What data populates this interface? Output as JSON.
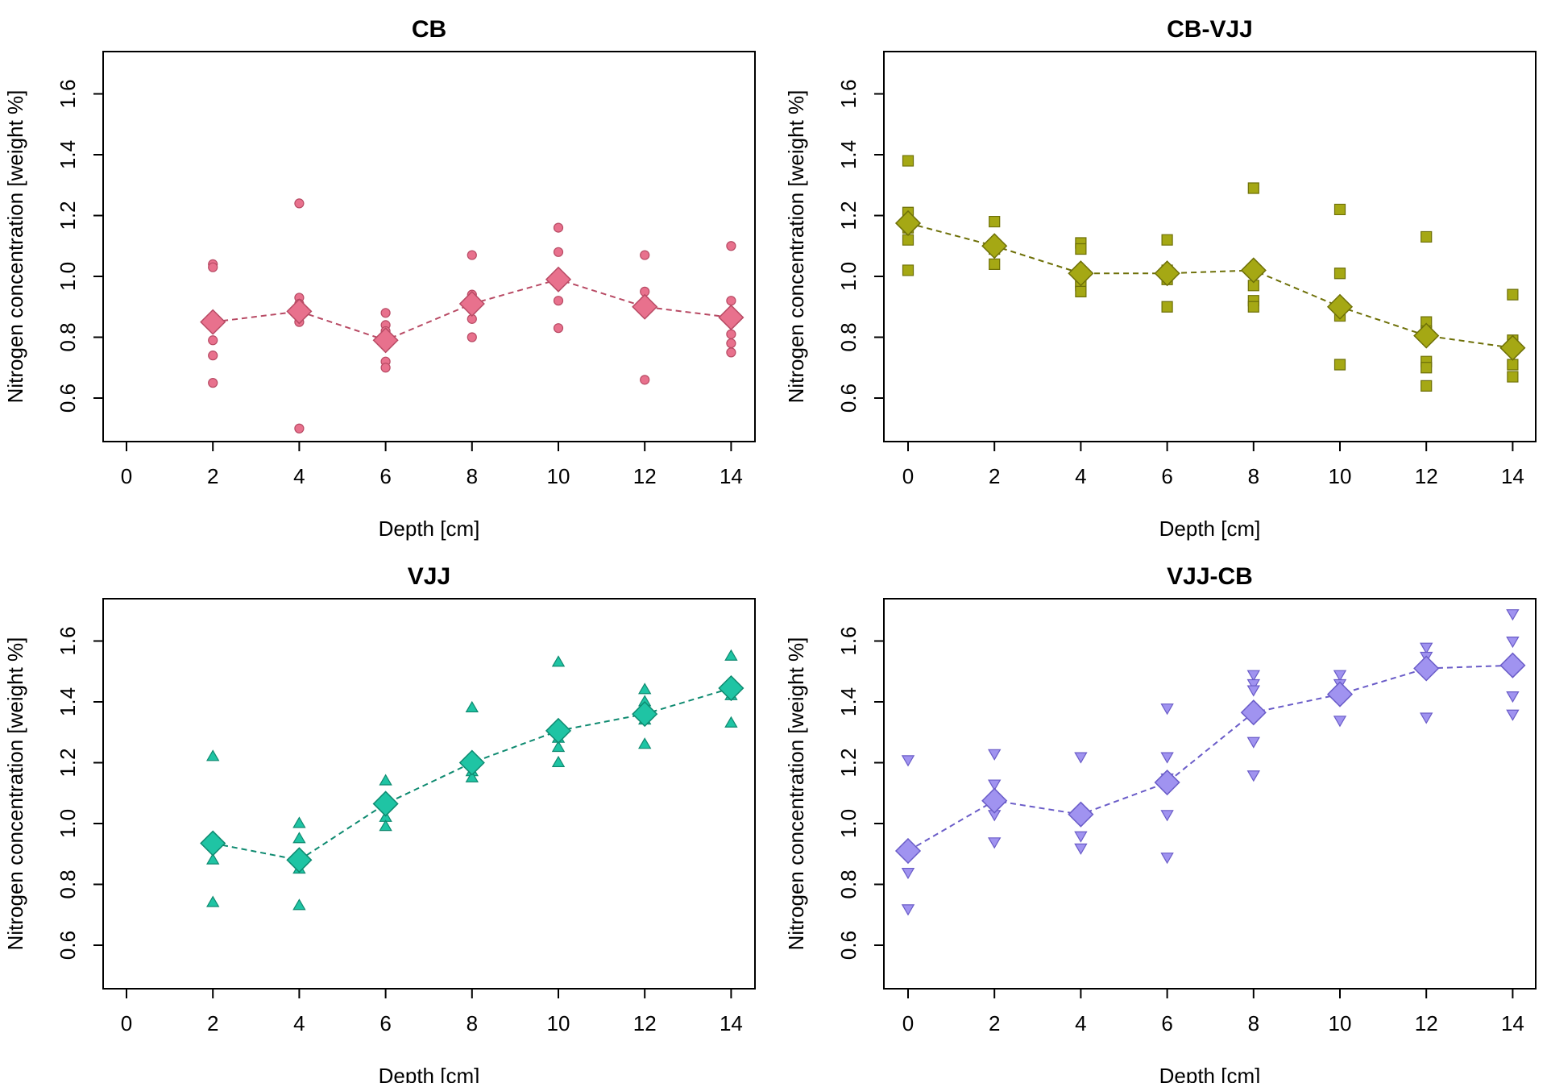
{
  "chart_data": [
    {
      "type": "scatter",
      "title": "CB",
      "xlabel": "Depth [cm]",
      "ylabel": "Nitrogen concentration [weight %]",
      "xlim": [
        0,
        14
      ],
      "ylim": [
        0.6,
        1.6
      ],
      "x_ticks": [
        "0",
        "2",
        "4",
        "6",
        "8",
        "10",
        "12",
        "14"
      ],
      "y_ticks": [
        "0.6",
        "0.8",
        "1.0",
        "1.2",
        "1.4",
        "1.6"
      ],
      "color": "#E8718D",
      "edge_color": "#B84A64",
      "marker": "circle",
      "points": [
        [
          2,
          1.04
        ],
        [
          2,
          1.03
        ],
        [
          2,
          0.79
        ],
        [
          2,
          0.74
        ],
        [
          2,
          0.65
        ],
        [
          4,
          1.24
        ],
        [
          4,
          0.93
        ],
        [
          4,
          0.91
        ],
        [
          4,
          0.88
        ],
        [
          4,
          0.85
        ],
        [
          4,
          0.5
        ],
        [
          6,
          0.88
        ],
        [
          6,
          0.84
        ],
        [
          6,
          0.82
        ],
        [
          6,
          0.72
        ],
        [
          6,
          0.7
        ],
        [
          8,
          1.07
        ],
        [
          8,
          0.94
        ],
        [
          8,
          0.89
        ],
        [
          8,
          0.86
        ],
        [
          8,
          0.8
        ],
        [
          10,
          1.16
        ],
        [
          10,
          1.08
        ],
        [
          10,
          0.99
        ],
        [
          10,
          0.92
        ],
        [
          10,
          0.83
        ],
        [
          12,
          1.07
        ],
        [
          12,
          0.95
        ],
        [
          12,
          0.92
        ],
        [
          12,
          0.89
        ],
        [
          12,
          0.66
        ],
        [
          14,
          1.1
        ],
        [
          14,
          0.92
        ],
        [
          14,
          0.81
        ],
        [
          14,
          0.78
        ],
        [
          14,
          0.75
        ]
      ],
      "means": [
        [
          2,
          0.85
        ],
        [
          4,
          0.885
        ],
        [
          6,
          0.79
        ],
        [
          8,
          0.91
        ],
        [
          10,
          0.99
        ],
        [
          12,
          0.9
        ],
        [
          14,
          0.865
        ]
      ]
    },
    {
      "type": "scatter",
      "title": "CB-VJJ",
      "xlabel": "Depth [cm]",
      "ylabel": "Nitrogen concentration [weight %]",
      "xlim": [
        0,
        14
      ],
      "ylim": [
        0.6,
        1.6
      ],
      "x_ticks": [
        "0",
        "2",
        "4",
        "6",
        "8",
        "10",
        "12",
        "14"
      ],
      "y_ticks": [
        "0.6",
        "0.8",
        "1.0",
        "1.2",
        "1.4",
        "1.6"
      ],
      "color": "#A5A814",
      "edge_color": "#6E7008",
      "marker": "square",
      "points": [
        [
          0,
          1.38
        ],
        [
          0,
          1.21
        ],
        [
          0,
          1.16
        ],
        [
          0,
          1.12
        ],
        [
          0,
          1.02
        ],
        [
          2,
          1.18
        ],
        [
          2,
          1.09
        ],
        [
          2,
          1.04
        ],
        [
          4,
          1.11
        ],
        [
          4,
          1.09
        ],
        [
          4,
          0.98
        ],
        [
          4,
          0.97
        ],
        [
          4,
          0.95
        ],
        [
          6,
          1.12
        ],
        [
          6,
          1.02
        ],
        [
          6,
          0.99
        ],
        [
          6,
          0.9
        ],
        [
          8,
          1.29
        ],
        [
          8,
          0.97
        ],
        [
          8,
          0.92
        ],
        [
          8,
          0.9
        ],
        [
          10,
          1.22
        ],
        [
          10,
          1.01
        ],
        [
          10,
          0.87
        ],
        [
          10,
          0.71
        ],
        [
          12,
          1.13
        ],
        [
          12,
          0.85
        ],
        [
          12,
          0.82
        ],
        [
          12,
          0.72
        ],
        [
          12,
          0.7
        ],
        [
          12,
          0.64
        ],
        [
          14,
          0.94
        ],
        [
          14,
          0.79
        ],
        [
          14,
          0.76
        ],
        [
          14,
          0.71
        ],
        [
          14,
          0.67
        ]
      ],
      "means": [
        [
          0,
          1.175
        ],
        [
          2,
          1.1
        ],
        [
          4,
          1.01
        ],
        [
          6,
          1.01
        ],
        [
          8,
          1.02
        ],
        [
          10,
          0.9
        ],
        [
          12,
          0.805
        ],
        [
          14,
          0.765
        ]
      ]
    },
    {
      "type": "scatter",
      "title": "VJJ",
      "xlabel": "Depth [cm]",
      "ylabel": "Nitrogen concentration [weight %]",
      "xlim": [
        0,
        14
      ],
      "ylim": [
        0.6,
        1.6
      ],
      "x_ticks": [
        "0",
        "2",
        "4",
        "6",
        "8",
        "10",
        "12",
        "14"
      ],
      "y_ticks": [
        "0.6",
        "0.8",
        "1.0",
        "1.2",
        "1.4",
        "1.6"
      ],
      "color": "#1FC4A4",
      "edge_color": "#0E8A70",
      "marker": "triangle-up",
      "points": [
        [
          2,
          1.22
        ],
        [
          2,
          0.88
        ],
        [
          2,
          0.74
        ],
        [
          4,
          1.0
        ],
        [
          4,
          0.95
        ],
        [
          4,
          0.85
        ],
        [
          4,
          0.73
        ],
        [
          6,
          1.14
        ],
        [
          6,
          1.02
        ],
        [
          6,
          0.99
        ],
        [
          8,
          1.38
        ],
        [
          8,
          1.17
        ],
        [
          8,
          1.15
        ],
        [
          10,
          1.53
        ],
        [
          10,
          1.28
        ],
        [
          10,
          1.25
        ],
        [
          10,
          1.2
        ],
        [
          12,
          1.44
        ],
        [
          12,
          1.4
        ],
        [
          12,
          1.34
        ],
        [
          12,
          1.26
        ],
        [
          14,
          1.55
        ],
        [
          14,
          1.42
        ],
        [
          14,
          1.33
        ]
      ],
      "means": [
        [
          2,
          0.935
        ],
        [
          4,
          0.88
        ],
        [
          6,
          1.065
        ],
        [
          8,
          1.2
        ],
        [
          10,
          1.305
        ],
        [
          12,
          1.36
        ],
        [
          14,
          1.445
        ]
      ]
    },
    {
      "type": "scatter",
      "title": "VJJ-CB",
      "xlabel": "Depth [cm]",
      "ylabel": "Nitrogen concentration [weight %]",
      "xlim": [
        0,
        14
      ],
      "ylim": [
        0.6,
        1.6
      ],
      "x_ticks": [
        "0",
        "2",
        "4",
        "6",
        "8",
        "10",
        "12",
        "14"
      ],
      "y_ticks": [
        "0.6",
        "0.8",
        "1.0",
        "1.2",
        "1.4",
        "1.6"
      ],
      "color": "#A093F0",
      "edge_color": "#6A5CC8",
      "marker": "triangle-down",
      "points": [
        [
          0,
          1.21
        ],
        [
          0,
          0.89
        ],
        [
          0,
          0.84
        ],
        [
          0,
          0.72
        ],
        [
          2,
          1.23
        ],
        [
          2,
          1.13
        ],
        [
          2,
          1.03
        ],
        [
          2,
          0.94
        ],
        [
          4,
          1.22
        ],
        [
          4,
          0.96
        ],
        [
          4,
          0.92
        ],
        [
          6,
          1.38
        ],
        [
          6,
          1.22
        ],
        [
          6,
          1.15
        ],
        [
          6,
          1.03
        ],
        [
          6,
          0.89
        ],
        [
          8,
          1.49
        ],
        [
          8,
          1.46
        ],
        [
          8,
          1.44
        ],
        [
          8,
          1.27
        ],
        [
          8,
          1.16
        ],
        [
          10,
          1.49
        ],
        [
          10,
          1.46
        ],
        [
          10,
          1.34
        ],
        [
          12,
          1.58
        ],
        [
          12,
          1.55
        ],
        [
          12,
          1.35
        ],
        [
          14,
          1.69
        ],
        [
          14,
          1.6
        ],
        [
          14,
          1.42
        ],
        [
          14,
          1.36
        ]
      ],
      "means": [
        [
          0,
          0.91
        ],
        [
          2,
          1.075
        ],
        [
          4,
          1.03
        ],
        [
          6,
          1.135
        ],
        [
          8,
          1.365
        ],
        [
          10,
          1.425
        ],
        [
          12,
          1.51
        ],
        [
          14,
          1.52
        ]
      ]
    }
  ]
}
